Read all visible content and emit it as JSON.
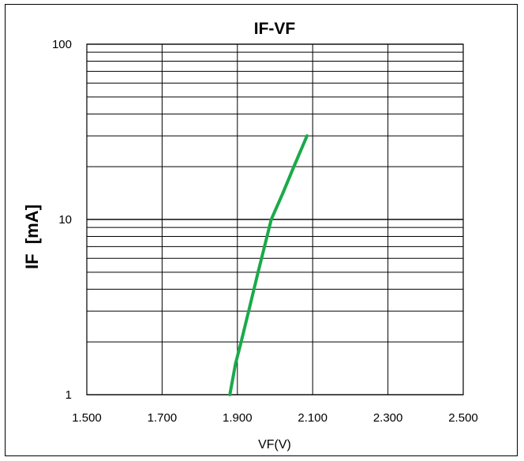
{
  "chart_data": {
    "type": "line",
    "title": "IF-VF",
    "xlabel": "VF(V)",
    "ylabel": "IF  [mA]",
    "xlim": [
      1.5,
      2.5
    ],
    "ylim": [
      1,
      100
    ],
    "y_scale": "log",
    "grid": true,
    "x_ticks": [
      "1.500",
      "1.700",
      "1.900",
      "2.100",
      "2.300",
      "2.500"
    ],
    "y_ticks": [
      "1",
      "10",
      "100"
    ],
    "series": [
      {
        "color": "#1aaa4a",
        "x": [
          1.88,
          1.895,
          1.91,
          1.93,
          1.955,
          1.99,
          2.02,
          2.05,
          2.085
        ],
        "y": [
          1,
          1.5,
          2,
          3,
          5,
          10,
          14,
          20,
          30
        ]
      }
    ]
  }
}
